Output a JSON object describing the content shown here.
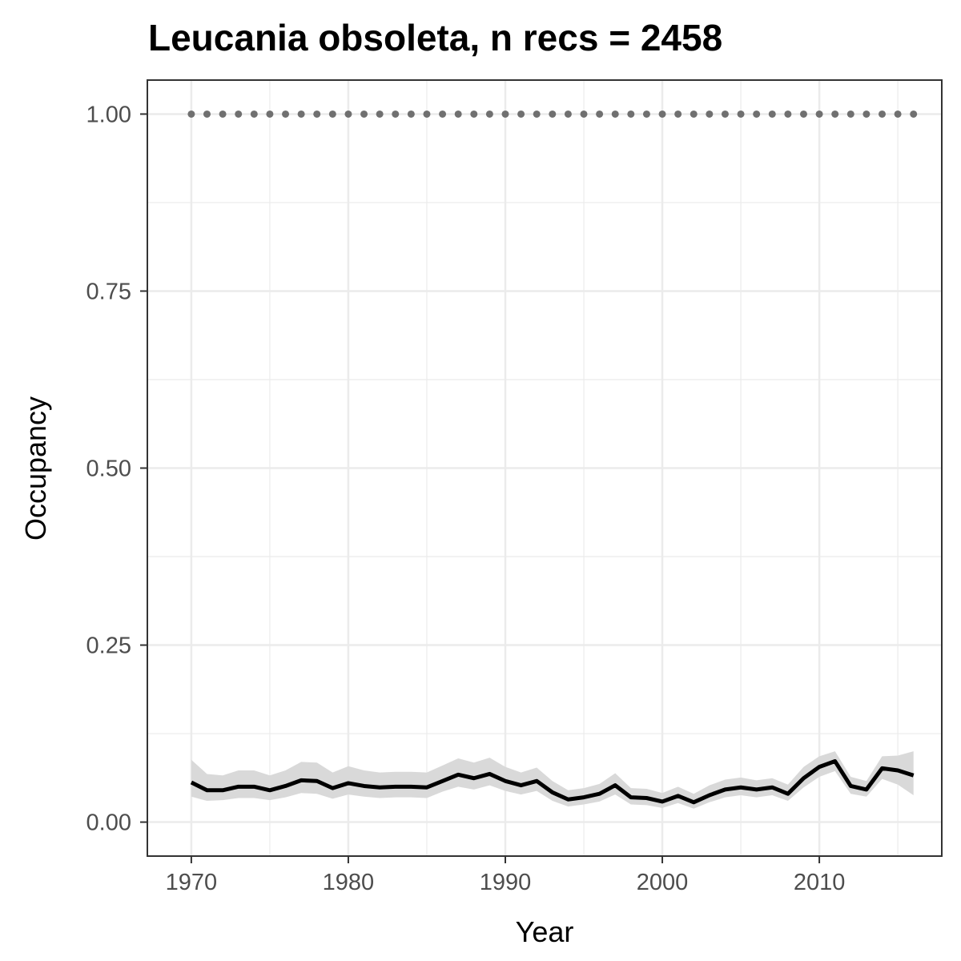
{
  "chart_data": {
    "type": "line",
    "title": "Leucania obsoleta, n recs = 2458",
    "xlabel": "Year",
    "ylabel": "Occupancy",
    "xlim": [
      1967.2,
      2017.8
    ],
    "ylim": [
      -0.048,
      1.048
    ],
    "x_ticks": [
      1970,
      1980,
      1990,
      2000,
      2010
    ],
    "x_tick_labels": [
      "1970",
      "1980",
      "1990",
      "2000",
      "2010"
    ],
    "y_ticks": [
      0,
      0.25,
      0.5,
      0.75,
      1
    ],
    "y_tick_labels": [
      "0.00",
      "0.25",
      "0.50",
      "0.75",
      "1.00"
    ],
    "grid": true,
    "legend": "none",
    "x": [
      1970,
      1971,
      1972,
      1973,
      1974,
      1975,
      1976,
      1977,
      1978,
      1979,
      1980,
      1981,
      1982,
      1983,
      1984,
      1985,
      1986,
      1987,
      1988,
      1989,
      1990,
      1991,
      1992,
      1993,
      1994,
      1995,
      1996,
      1997,
      1998,
      1999,
      2000,
      2001,
      2002,
      2003,
      2004,
      2005,
      2006,
      2007,
      2008,
      2009,
      2010,
      2011,
      2012,
      2013,
      2014,
      2015,
      2016
    ],
    "series": [
      {
        "values": [
          0.056,
          0.045,
          0.045,
          0.05,
          0.05,
          0.045,
          0.051,
          0.059,
          0.058,
          0.048,
          0.055,
          0.051,
          0.049,
          0.05,
          0.05,
          0.049,
          0.058,
          0.067,
          0.062,
          0.068,
          0.058,
          0.052,
          0.058,
          0.042,
          0.032,
          0.035,
          0.04,
          0.052,
          0.035,
          0.034,
          0.029,
          0.037,
          0.028,
          0.038,
          0.046,
          0.049,
          0.046,
          0.049,
          0.04,
          0.062,
          0.078,
          0.086,
          0.051,
          0.046,
          0.076,
          0.073,
          0.066
        ],
        "lower": [
          0.036,
          0.03,
          0.031,
          0.034,
          0.034,
          0.031,
          0.035,
          0.041,
          0.04,
          0.033,
          0.039,
          0.036,
          0.034,
          0.035,
          0.035,
          0.034,
          0.043,
          0.05,
          0.046,
          0.052,
          0.044,
          0.039,
          0.044,
          0.03,
          0.022,
          0.025,
          0.029,
          0.039,
          0.025,
          0.024,
          0.02,
          0.027,
          0.019,
          0.028,
          0.035,
          0.038,
          0.035,
          0.038,
          0.03,
          0.049,
          0.064,
          0.072,
          0.04,
          0.036,
          0.061,
          0.053,
          0.038
        ],
        "upper": [
          0.088,
          0.068,
          0.066,
          0.073,
          0.073,
          0.066,
          0.073,
          0.085,
          0.084,
          0.07,
          0.079,
          0.073,
          0.07,
          0.071,
          0.071,
          0.07,
          0.08,
          0.09,
          0.084,
          0.091,
          0.078,
          0.07,
          0.077,
          0.058,
          0.045,
          0.048,
          0.054,
          0.069,
          0.048,
          0.047,
          0.041,
          0.05,
          0.04,
          0.052,
          0.06,
          0.063,
          0.059,
          0.062,
          0.053,
          0.078,
          0.093,
          0.1,
          0.064,
          0.058,
          0.093,
          0.094,
          0.1
        ],
        "color": "#000000",
        "ribbon_color": "#d9d9d9"
      },
      {
        "values": [
          1,
          1,
          1,
          1,
          1,
          1,
          1,
          1,
          1,
          1,
          1,
          1,
          1,
          1,
          1,
          1,
          1,
          1,
          1,
          1,
          1,
          1,
          1,
          1,
          1,
          1,
          1,
          1,
          1,
          1,
          1,
          1,
          1,
          1,
          1,
          1,
          1,
          1,
          1,
          1,
          1,
          1,
          1,
          1,
          1,
          1,
          1
        ],
        "color": "#707070",
        "style": "dotted"
      }
    ]
  }
}
